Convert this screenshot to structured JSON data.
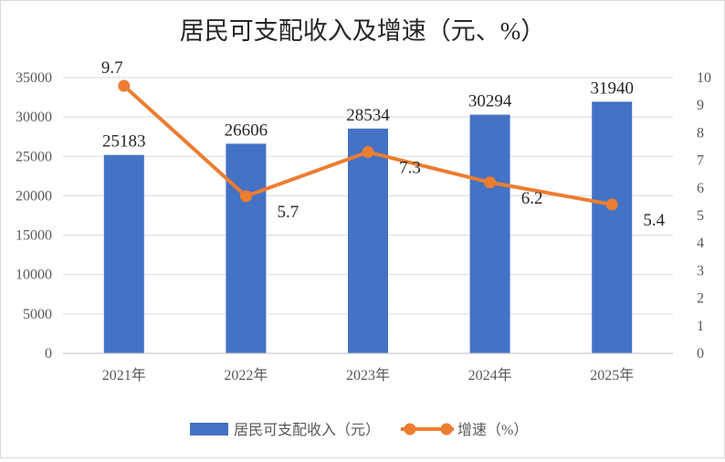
{
  "chart_data": {
    "type": "bar",
    "title": "居民可支配收入及增速（元、%）",
    "categories": [
      "2021年",
      "2022年",
      "2023年",
      "2024年",
      "2025年"
    ],
    "series": [
      {
        "name": "居民可支配收入（元）",
        "type": "bar",
        "axis": "left",
        "color": "#4472C4",
        "values": [
          25183,
          26606,
          28534,
          30294,
          31940
        ]
      },
      {
        "name": "增速（%）",
        "type": "line",
        "axis": "right",
        "color": "#ED7D31",
        "values": [
          9.7,
          5.7,
          7.3,
          6.2,
          5.4
        ]
      }
    ],
    "y_left": {
      "lim": [
        0,
        35000
      ],
      "ticks": [
        "0",
        "5000",
        "10000",
        "15000",
        "20000",
        "25000",
        "30000",
        "35000"
      ]
    },
    "y_right": {
      "lim": [
        0,
        10
      ],
      "ticks": [
        "0",
        "1",
        "2",
        "3",
        "4",
        "5",
        "6",
        "7",
        "8",
        "9",
        "10"
      ]
    },
    "grid": true,
    "legend_position": "bottom"
  }
}
